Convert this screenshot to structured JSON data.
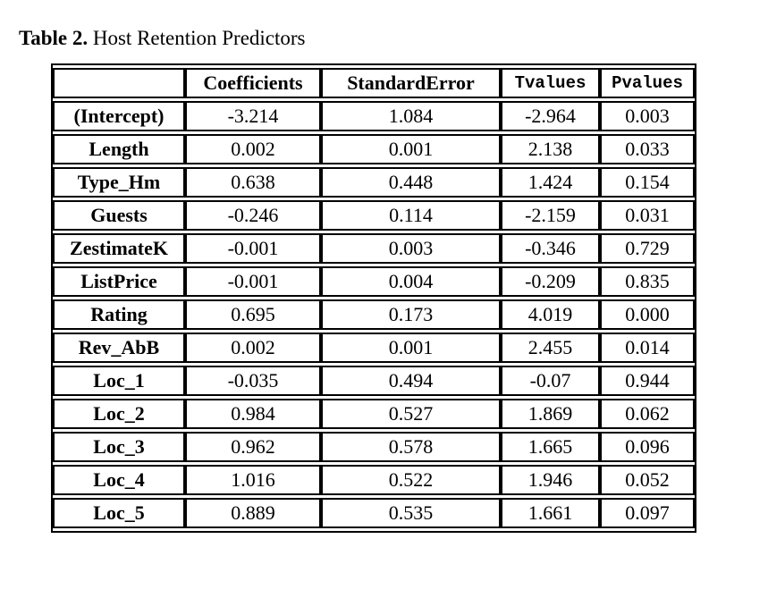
{
  "page": {
    "background_color": "#ffffff",
    "text_color": "#000000",
    "border_color": "#000000"
  },
  "title": {
    "prefix": "Table 2.",
    "text": " Host Retention Predictors"
  },
  "table": {
    "headers": [
      "",
      "Coefficients",
      "StandardError",
      "Tvalues",
      "Pvalues"
    ],
    "rows": [
      {
        "label": "(Intercept)",
        "values": [
          "-3.214",
          "1.084",
          "-2.964",
          "0.003"
        ]
      },
      {
        "label": "Length",
        "values": [
          "0.002",
          "0.001",
          "2.138",
          "0.033"
        ]
      },
      {
        "label": "Type_Hm",
        "values": [
          "0.638",
          "0.448",
          "1.424",
          "0.154"
        ]
      },
      {
        "label": "Guests",
        "values": [
          "-0.246",
          "0.114",
          "-2.159",
          "0.031"
        ]
      },
      {
        "label": "ZestimateK",
        "values": [
          "-0.001",
          "0.003",
          "-0.346",
          "0.729"
        ]
      },
      {
        "label": "ListPrice",
        "values": [
          "-0.001",
          "0.004",
          "-0.209",
          "0.835"
        ]
      },
      {
        "label": "Rating",
        "values": [
          "0.695",
          "0.173",
          "4.019",
          "0.000"
        ]
      },
      {
        "label": "Rev_AbB",
        "values": [
          "0.002",
          "0.001",
          "2.455",
          "0.014"
        ]
      },
      {
        "label": "Loc_1",
        "values": [
          "-0.035",
          "0.494",
          "-0.07",
          "0.944"
        ]
      },
      {
        "label": "Loc_2",
        "values": [
          "0.984",
          "0.527",
          "1.869",
          "0.062"
        ]
      },
      {
        "label": "Loc_3",
        "values": [
          "0.962",
          "0.578",
          "1.665",
          "0.096"
        ]
      },
      {
        "label": "Loc_4",
        "values": [
          "1.016",
          "0.522",
          "1.946",
          "0.052"
        ]
      },
      {
        "label": "Loc_5",
        "values": [
          "0.889",
          "0.535",
          "1.661",
          "0.097"
        ]
      }
    ]
  },
  "chart_data": {
    "type": "table",
    "title": "Table 2. Host Retention Predictors",
    "columns": [
      "",
      "Coefficients",
      "StandardError",
      "Tvalues",
      "Pvalues"
    ],
    "rows": [
      [
        "(Intercept)",
        -3.214,
        1.084,
        -2.964,
        0.003
      ],
      [
        "Length",
        0.002,
        0.001,
        2.138,
        0.033
      ],
      [
        "Type_Hm",
        0.638,
        0.448,
        1.424,
        0.154
      ],
      [
        "Guests",
        -0.246,
        0.114,
        -2.159,
        0.031
      ],
      [
        "ZestimateK",
        -0.001,
        0.003,
        -0.346,
        0.729
      ],
      [
        "ListPrice",
        -0.001,
        0.004,
        -0.209,
        0.835
      ],
      [
        "Rating",
        0.695,
        0.173,
        4.019,
        0.0
      ],
      [
        "Rev_AbB",
        0.002,
        0.001,
        2.455,
        0.014
      ],
      [
        "Loc_1",
        -0.035,
        0.494,
        -0.07,
        0.944
      ],
      [
        "Loc_2",
        0.984,
        0.527,
        1.869,
        0.062
      ],
      [
        "Loc_3",
        0.962,
        0.578,
        1.665,
        0.096
      ],
      [
        "Loc_4",
        1.016,
        0.522,
        1.946,
        0.052
      ],
      [
        "Loc_5",
        0.889,
        0.535,
        1.661,
        0.097
      ]
    ]
  }
}
